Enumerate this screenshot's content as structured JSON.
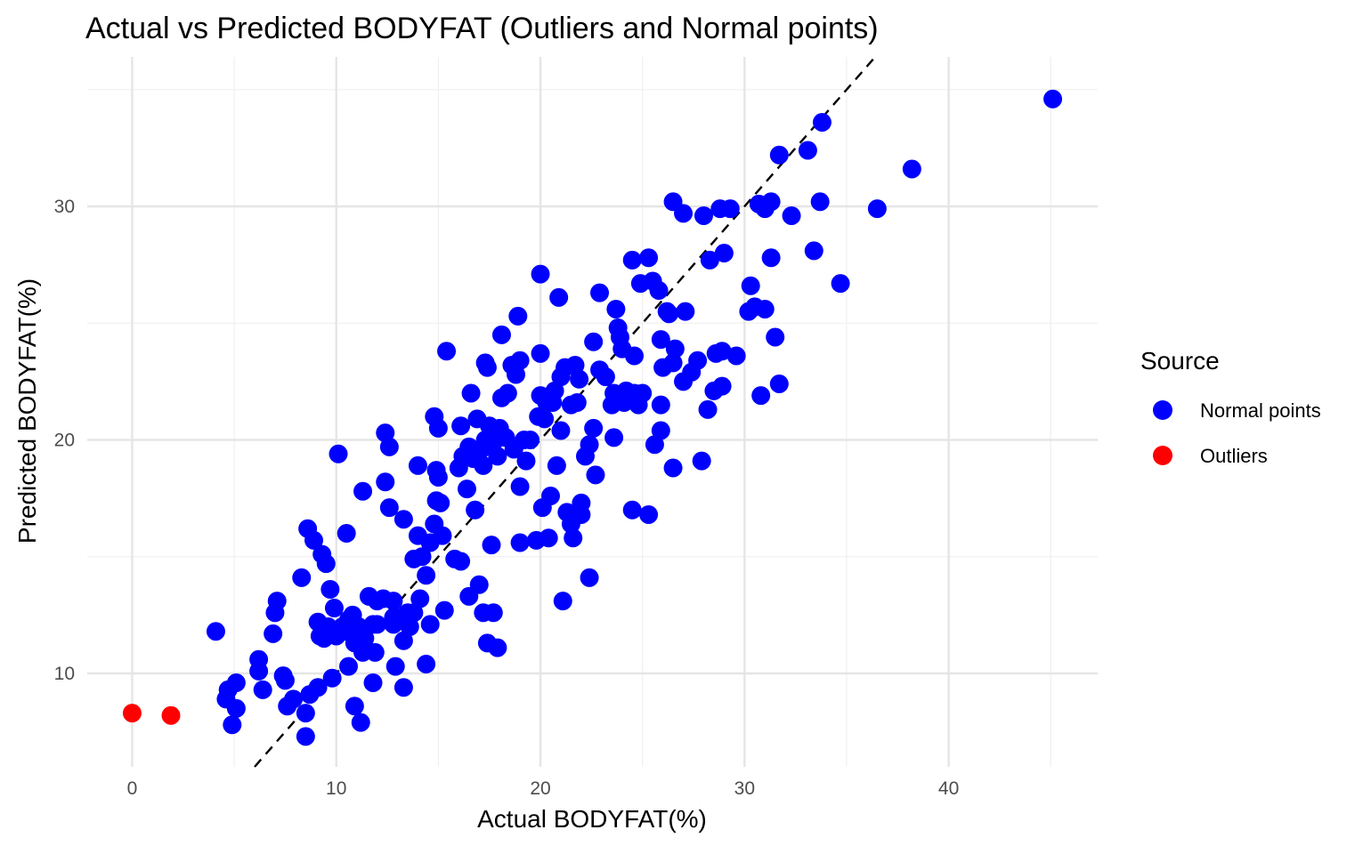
{
  "chart_data": {
    "type": "scatter",
    "title": "Actual vs Predicted BODYFAT (Outliers and Normal points)",
    "xlabel": "Actual BODYFAT(%)",
    "ylabel": "Predicted BODYFAT(%)",
    "xlim": [
      -2.2,
      47.3
    ],
    "ylim": [
      6.0,
      36.4
    ],
    "x_ticks": [
      0,
      10,
      20,
      30,
      40
    ],
    "y_ticks": [
      10,
      20,
      30
    ],
    "grid": true,
    "legend": {
      "title": "Source",
      "position": "right",
      "entries": [
        {
          "label": "Normal points",
          "color": "#0000ff"
        },
        {
          "label": "Outliers",
          "color": "#ff0000"
        }
      ]
    },
    "reference_line": {
      "type": "identity",
      "style": "dashed",
      "color": "#000000"
    },
    "series": [
      {
        "name": "Normal points",
        "color": "#0000ff",
        "points": [
          [
            45.1,
            34.6
          ],
          [
            38.2,
            31.6
          ],
          [
            36.5,
            29.9
          ],
          [
            34.7,
            26.7
          ],
          [
            33.8,
            33.6
          ],
          [
            33.7,
            30.2
          ],
          [
            33.4,
            28.1
          ],
          [
            33.1,
            32.4
          ],
          [
            32.3,
            29.6
          ],
          [
            31.7,
            32.2
          ],
          [
            31.7,
            22.4
          ],
          [
            31.5,
            24.4
          ],
          [
            31.3,
            27.8
          ],
          [
            31.3,
            30.2
          ],
          [
            31.0,
            29.9
          ],
          [
            31.0,
            25.6
          ],
          [
            30.8,
            21.9
          ],
          [
            30.7,
            30.1
          ],
          [
            30.5,
            25.7
          ],
          [
            30.3,
            26.6
          ],
          [
            30.2,
            25.5
          ],
          [
            29.6,
            23.6
          ],
          [
            29.3,
            29.9
          ],
          [
            29.0,
            28.0
          ],
          [
            28.9,
            23.8
          ],
          [
            28.9,
            22.3
          ],
          [
            28.8,
            29.9
          ],
          [
            28.6,
            23.7
          ],
          [
            28.5,
            22.1
          ],
          [
            28.3,
            27.7
          ],
          [
            28.2,
            21.3
          ],
          [
            28.0,
            29.6
          ],
          [
            27.9,
            19.1
          ],
          [
            27.7,
            23.4
          ],
          [
            27.4,
            22.9
          ],
          [
            27.1,
            25.5
          ],
          [
            27.0,
            29.7
          ],
          [
            27.0,
            22.5
          ],
          [
            26.5,
            30.2
          ],
          [
            26.6,
            23.9
          ],
          [
            26.5,
            23.3
          ],
          [
            26.5,
            18.8
          ],
          [
            26.3,
            25.4
          ],
          [
            26.2,
            25.5
          ],
          [
            26.0,
            23.1
          ],
          [
            25.9,
            24.3
          ],
          [
            25.9,
            21.5
          ],
          [
            25.9,
            20.4
          ],
          [
            25.6,
            19.8
          ],
          [
            25.8,
            26.4
          ],
          [
            25.5,
            26.8
          ],
          [
            25.3,
            16.8
          ],
          [
            25.3,
            27.8
          ],
          [
            25.0,
            22.0
          ],
          [
            24.8,
            21.5
          ],
          [
            24.9,
            26.7
          ],
          [
            24.6,
            22.0
          ],
          [
            24.6,
            23.6
          ],
          [
            24.5,
            17.0
          ],
          [
            24.5,
            27.7
          ],
          [
            24.2,
            22.1
          ],
          [
            24.1,
            21.6
          ],
          [
            24.0,
            23.9
          ],
          [
            23.9,
            24.4
          ],
          [
            23.8,
            24.8
          ],
          [
            23.7,
            25.6
          ],
          [
            23.6,
            22.0
          ],
          [
            23.6,
            20.1
          ],
          [
            23.5,
            21.5
          ],
          [
            23.2,
            22.7
          ],
          [
            22.9,
            23.0
          ],
          [
            22.9,
            26.3
          ],
          [
            22.7,
            18.5
          ],
          [
            22.6,
            24.2
          ],
          [
            22.6,
            20.5
          ],
          [
            22.4,
            14.1
          ],
          [
            22.4,
            19.8
          ],
          [
            22.2,
            19.3
          ],
          [
            22.0,
            16.8
          ],
          [
            22.0,
            17.3
          ],
          [
            21.9,
            22.6
          ],
          [
            21.8,
            21.6
          ],
          [
            21.7,
            23.2
          ],
          [
            21.6,
            15.8
          ],
          [
            21.5,
            21.5
          ],
          [
            21.5,
            16.4
          ],
          [
            21.3,
            16.9
          ],
          [
            21.2,
            23.1
          ],
          [
            21.1,
            13.1
          ],
          [
            21.0,
            20.4
          ],
          [
            21.0,
            22.7
          ],
          [
            20.9,
            26.1
          ],
          [
            20.8,
            18.9
          ],
          [
            20.7,
            22.1
          ],
          [
            20.6,
            21.6
          ],
          [
            20.5,
            17.6
          ],
          [
            20.4,
            15.8
          ],
          [
            20.3,
            21.6
          ],
          [
            20.2,
            20.9
          ],
          [
            20.1,
            17.1
          ],
          [
            20.0,
            27.1
          ],
          [
            20.0,
            21.9
          ],
          [
            20.0,
            23.7
          ],
          [
            19.9,
            21.0
          ],
          [
            19.8,
            15.7
          ],
          [
            19.5,
            20.0
          ],
          [
            19.3,
            19.1
          ],
          [
            19.2,
            20.0
          ],
          [
            19.0,
            15.6
          ],
          [
            19.0,
            18.0
          ],
          [
            19.0,
            23.4
          ],
          [
            18.9,
            25.3
          ],
          [
            18.8,
            22.8
          ],
          [
            18.7,
            19.6
          ],
          [
            18.6,
            23.2
          ],
          [
            18.4,
            22.0
          ],
          [
            18.3,
            20.1
          ],
          [
            18.1,
            21.8
          ],
          [
            18.1,
            24.5
          ],
          [
            18.0,
            20.5
          ],
          [
            17.9,
            11.1
          ],
          [
            17.9,
            19.3
          ],
          [
            17.7,
            19.9
          ],
          [
            17.7,
            12.6
          ],
          [
            17.6,
            15.5
          ],
          [
            17.5,
            20.6
          ],
          [
            17.4,
            23.1
          ],
          [
            17.4,
            11.3
          ],
          [
            17.3,
            23.3
          ],
          [
            17.3,
            20.0
          ],
          [
            17.2,
            18.9
          ],
          [
            17.2,
            12.6
          ],
          [
            17.1,
            19.6
          ],
          [
            17.0,
            13.8
          ],
          [
            16.9,
            20.9
          ],
          [
            16.8,
            17.0
          ],
          [
            16.7,
            19.2
          ],
          [
            16.6,
            22.0
          ],
          [
            16.5,
            19.7
          ],
          [
            16.5,
            13.3
          ],
          [
            16.4,
            17.9
          ],
          [
            16.2,
            19.3
          ],
          [
            16.1,
            20.6
          ],
          [
            16.0,
            18.8
          ],
          [
            16.1,
            14.8
          ],
          [
            15.8,
            14.9
          ],
          [
            15.4,
            23.8
          ],
          [
            15.3,
            12.7
          ],
          [
            15.2,
            15.9
          ],
          [
            15.1,
            17.3
          ],
          [
            15.0,
            20.5
          ],
          [
            15.0,
            18.4
          ],
          [
            14.9,
            17.4
          ],
          [
            14.9,
            18.7
          ],
          [
            14.8,
            21.0
          ],
          [
            14.8,
            16.4
          ],
          [
            14.6,
            12.1
          ],
          [
            14.6,
            15.6
          ],
          [
            14.4,
            10.4
          ],
          [
            14.4,
            14.2
          ],
          [
            14.2,
            15.0
          ],
          [
            14.1,
            13.2
          ],
          [
            14.0,
            18.9
          ],
          [
            14.0,
            15.9
          ],
          [
            13.8,
            14.9
          ],
          [
            13.8,
            12.6
          ],
          [
            13.6,
            12.0
          ],
          [
            13.5,
            12.6
          ],
          [
            13.3,
            9.4
          ],
          [
            13.3,
            11.4
          ],
          [
            13.3,
            16.6
          ],
          [
            13.0,
            12.4
          ],
          [
            12.9,
            10.3
          ],
          [
            12.8,
            13.1
          ],
          [
            12.8,
            12.1
          ],
          [
            12.8,
            12.4
          ],
          [
            12.6,
            17.1
          ],
          [
            12.6,
            19.7
          ],
          [
            12.4,
            20.3
          ],
          [
            12.4,
            18.2
          ],
          [
            12.3,
            13.2
          ],
          [
            12.0,
            12.1
          ],
          [
            12.0,
            13.1
          ],
          [
            11.9,
            10.9
          ],
          [
            11.8,
            9.6
          ],
          [
            11.8,
            12.1
          ],
          [
            11.6,
            13.3
          ],
          [
            11.4,
            11.5
          ],
          [
            11.3,
            10.9
          ],
          [
            11.3,
            17.8
          ],
          [
            11.2,
            7.9
          ],
          [
            11.1,
            12.0
          ],
          [
            10.9,
            11.3
          ],
          [
            10.9,
            8.6
          ],
          [
            10.8,
            12.5
          ],
          [
            10.6,
            10.3
          ],
          [
            10.6,
            12.3
          ],
          [
            10.5,
            16.0
          ],
          [
            10.4,
            11.8
          ],
          [
            10.3,
            12.0
          ],
          [
            10.1,
            19.4
          ],
          [
            10.0,
            11.6
          ],
          [
            9.9,
            12.8
          ],
          [
            9.8,
            9.8
          ],
          [
            9.7,
            13.6
          ],
          [
            9.6,
            12.0
          ],
          [
            9.5,
            14.7
          ],
          [
            9.4,
            11.5
          ],
          [
            9.3,
            15.1
          ],
          [
            9.2,
            11.6
          ],
          [
            9.1,
            9.4
          ],
          [
            9.1,
            12.2
          ],
          [
            8.9,
            15.7
          ],
          [
            8.7,
            9.1
          ],
          [
            8.6,
            16.2
          ],
          [
            8.5,
            7.3
          ],
          [
            8.5,
            8.3
          ],
          [
            8.3,
            14.1
          ],
          [
            7.9,
            8.9
          ],
          [
            7.6,
            8.6
          ],
          [
            7.5,
            9.7
          ],
          [
            7.4,
            9.9
          ],
          [
            7.1,
            13.1
          ],
          [
            7.0,
            12.6
          ],
          [
            6.9,
            11.7
          ],
          [
            6.4,
            9.3
          ],
          [
            6.2,
            10.6
          ],
          [
            6.2,
            10.1
          ],
          [
            5.1,
            9.6
          ],
          [
            5.1,
            8.5
          ],
          [
            4.9,
            7.8
          ],
          [
            4.7,
            9.3
          ],
          [
            4.6,
            8.9
          ],
          [
            4.1,
            11.8
          ]
        ]
      },
      {
        "name": "Outliers",
        "color": "#ff0000",
        "points": [
          [
            0.0,
            8.3
          ],
          [
            1.9,
            8.2
          ]
        ]
      }
    ]
  }
}
